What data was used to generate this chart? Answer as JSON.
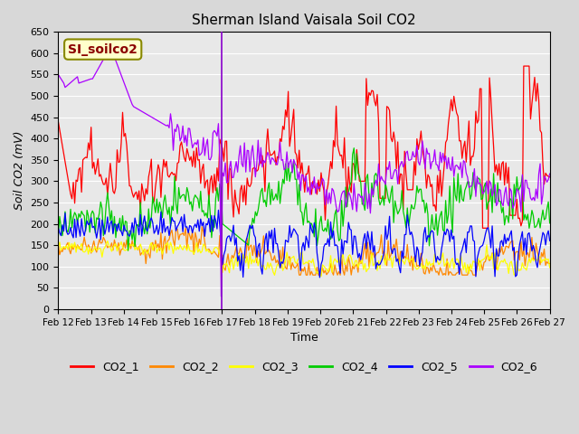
{
  "title": "Sherman Island Vaisala Soil CO2",
  "ylabel": "Soil CO2 (mV)",
  "xlabel": "Time",
  "annotation": "SI_soilco2",
  "ylim": [
    0,
    650
  ],
  "yticks": [
    0,
    50,
    100,
    150,
    200,
    250,
    300,
    350,
    400,
    450,
    500,
    550,
    600,
    650
  ],
  "background_color": "#e8e8e8",
  "plot_bg_color": "#f0f0f0",
  "series": [
    "CO2_1",
    "CO2_2",
    "CO2_3",
    "CO2_4",
    "CO2_5",
    "CO2_6"
  ],
  "colors": [
    "#ff0000",
    "#ff8800",
    "#ffff00",
    "#00cc00",
    "#0000ff",
    "#aa00ff"
  ],
  "n_points": 360,
  "start_day": 12,
  "end_day": 27
}
